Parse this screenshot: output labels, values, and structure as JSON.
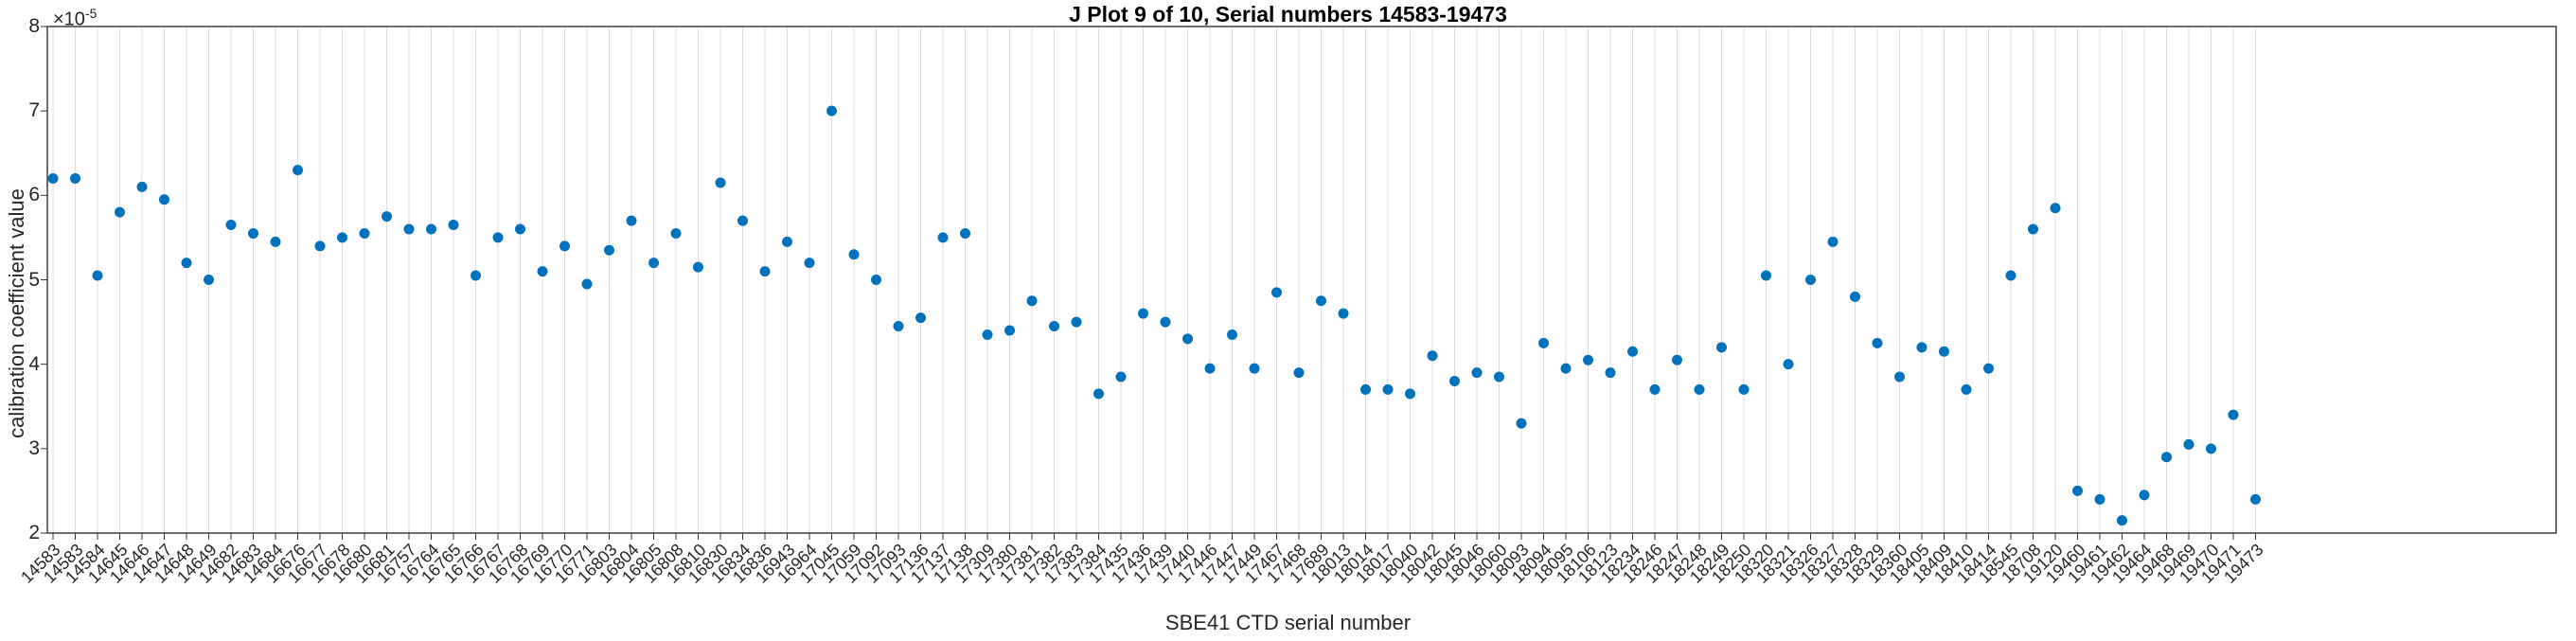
{
  "figure": {
    "background": "#ffffff"
  },
  "chart_data": {
    "type": "scatter",
    "title": "J Plot 9 of 10, Serial numbers 14583-19473",
    "xlabel": "SBE41 CTD serial number",
    "ylabel": "calibration coefficient value",
    "y_scale_base": "×10",
    "y_scale_exponent": "-5",
    "ylim": [
      2,
      8
    ],
    "yticks": [
      8,
      7,
      6,
      5,
      4,
      3,
      2
    ],
    "grid": "vertical-only",
    "legend": "none",
    "marker_color": "#0072BD",
    "grid_color": "#dcdcdc",
    "axis_color": "#333333",
    "tick_text_color": "#262626",
    "value_unit": "1e-5",
    "categories": [
      "14583",
      "14583",
      "14584",
      "14645",
      "14646",
      "14647",
      "14648",
      "14649",
      "14682",
      "14683",
      "14684",
      "16676",
      "16677",
      "16678",
      "16680",
      "16681",
      "16757",
      "16764",
      "16765",
      "16766",
      "16767",
      "16768",
      "16769",
      "16770",
      "16771",
      "16803",
      "16804",
      "16805",
      "16808",
      "16810",
      "16830",
      "16834",
      "16836",
      "16943",
      "16964",
      "17045",
      "17059",
      "17092",
      "17093",
      "17136",
      "17137",
      "17138",
      "17309",
      "17380",
      "17381",
      "17382",
      "17383",
      "17384",
      "17435",
      "17436",
      "17439",
      "17440",
      "17446",
      "17447",
      "17449",
      "17467",
      "17468",
      "17689",
      "18013",
      "18014",
      "18017",
      "18040",
      "18042",
      "18045",
      "18046",
      "18060",
      "18093",
      "18094",
      "18095",
      "18106",
      "18123",
      "18234",
      "18246",
      "18247",
      "18248",
      "18249",
      "18250",
      "18320",
      "18321",
      "18326",
      "18327",
      "18328",
      "18329",
      "18360",
      "18405",
      "18409",
      "18410",
      "18414",
      "18545",
      "18708",
      "19120",
      "19460",
      "19461",
      "19462",
      "19464",
      "19468",
      "19469",
      "19470",
      "19471",
      "19473"
    ],
    "values": [
      6.2,
      6.2,
      5.05,
      5.8,
      6.1,
      5.95,
      5.2,
      5.0,
      5.65,
      5.55,
      5.45,
      6.3,
      5.4,
      5.5,
      5.55,
      5.75,
      5.6,
      5.6,
      5.65,
      5.05,
      5.5,
      5.6,
      5.1,
      5.4,
      4.95,
      5.35,
      5.7,
      5.2,
      5.55,
      5.15,
      6.15,
      5.7,
      5.1,
      5.45,
      5.2,
      7.0,
      5.3,
      5.0,
      4.45,
      4.55,
      5.5,
      5.55,
      4.35,
      4.4,
      4.75,
      4.45,
      4.5,
      3.65,
      3.85,
      4.6,
      4.5,
      4.3,
      3.95,
      4.35,
      3.95,
      4.85,
      3.9,
      4.75,
      4.6,
      3.7,
      3.7,
      3.65,
      4.1,
      3.8,
      3.9,
      3.85,
      3.3,
      4.25,
      3.95,
      4.05,
      3.9,
      4.15,
      3.7,
      4.05,
      3.7,
      4.2,
      3.7,
      5.05,
      4.0,
      5.0,
      5.45,
      4.8,
      4.25,
      3.85,
      4.2,
      4.15,
      3.7,
      3.95,
      5.05,
      5.6,
      5.85,
      2.5,
      2.4,
      2.15,
      2.45,
      2.9,
      3.05,
      3.0,
      3.4,
      2.4
    ]
  }
}
